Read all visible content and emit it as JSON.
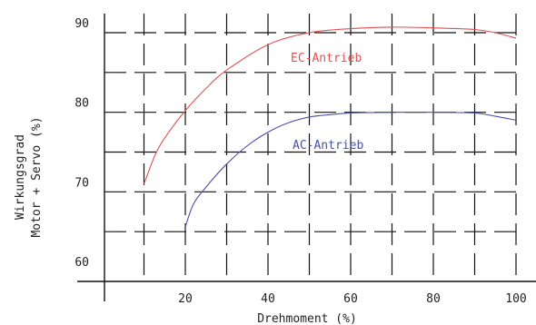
{
  "chart_data": {
    "type": "line",
    "xlabel": "Drehmoment (%)",
    "ylabel_lines": [
      "Wirkungsgrad",
      "Motor + Servo (%)"
    ],
    "xlim": [
      0,
      100
    ],
    "ylim": [
      58,
      92
    ],
    "xticks": [
      20,
      40,
      60,
      80,
      100
    ],
    "yticks": [
      60,
      70,
      80,
      90
    ],
    "grid": true,
    "grid_style": "dashed",
    "series": [
      {
        "name": "EC-Antrieb",
        "color": "#e05050",
        "x": [
          10,
          13,
          16,
          20,
          25,
          30,
          40,
          50,
          60,
          70,
          80,
          90,
          95,
          100
        ],
        "y": [
          71,
          75,
          77.5,
          80.2,
          83,
          85.3,
          88.5,
          90,
          90.5,
          90.7,
          90.6,
          90.4,
          90,
          89.3
        ]
      },
      {
        "name": "AC-Antrieb",
        "color": "#4a50a8",
        "x": [
          20,
          22,
          25,
          30,
          35,
          40,
          45,
          50,
          55,
          60,
          70,
          80,
          90,
          95,
          100
        ],
        "y": [
          65.6,
          68.5,
          70.6,
          73.5,
          75.8,
          77.5,
          78.7,
          79.4,
          79.7,
          79.9,
          80,
          80,
          79.9,
          79.5,
          79
        ]
      }
    ]
  }
}
